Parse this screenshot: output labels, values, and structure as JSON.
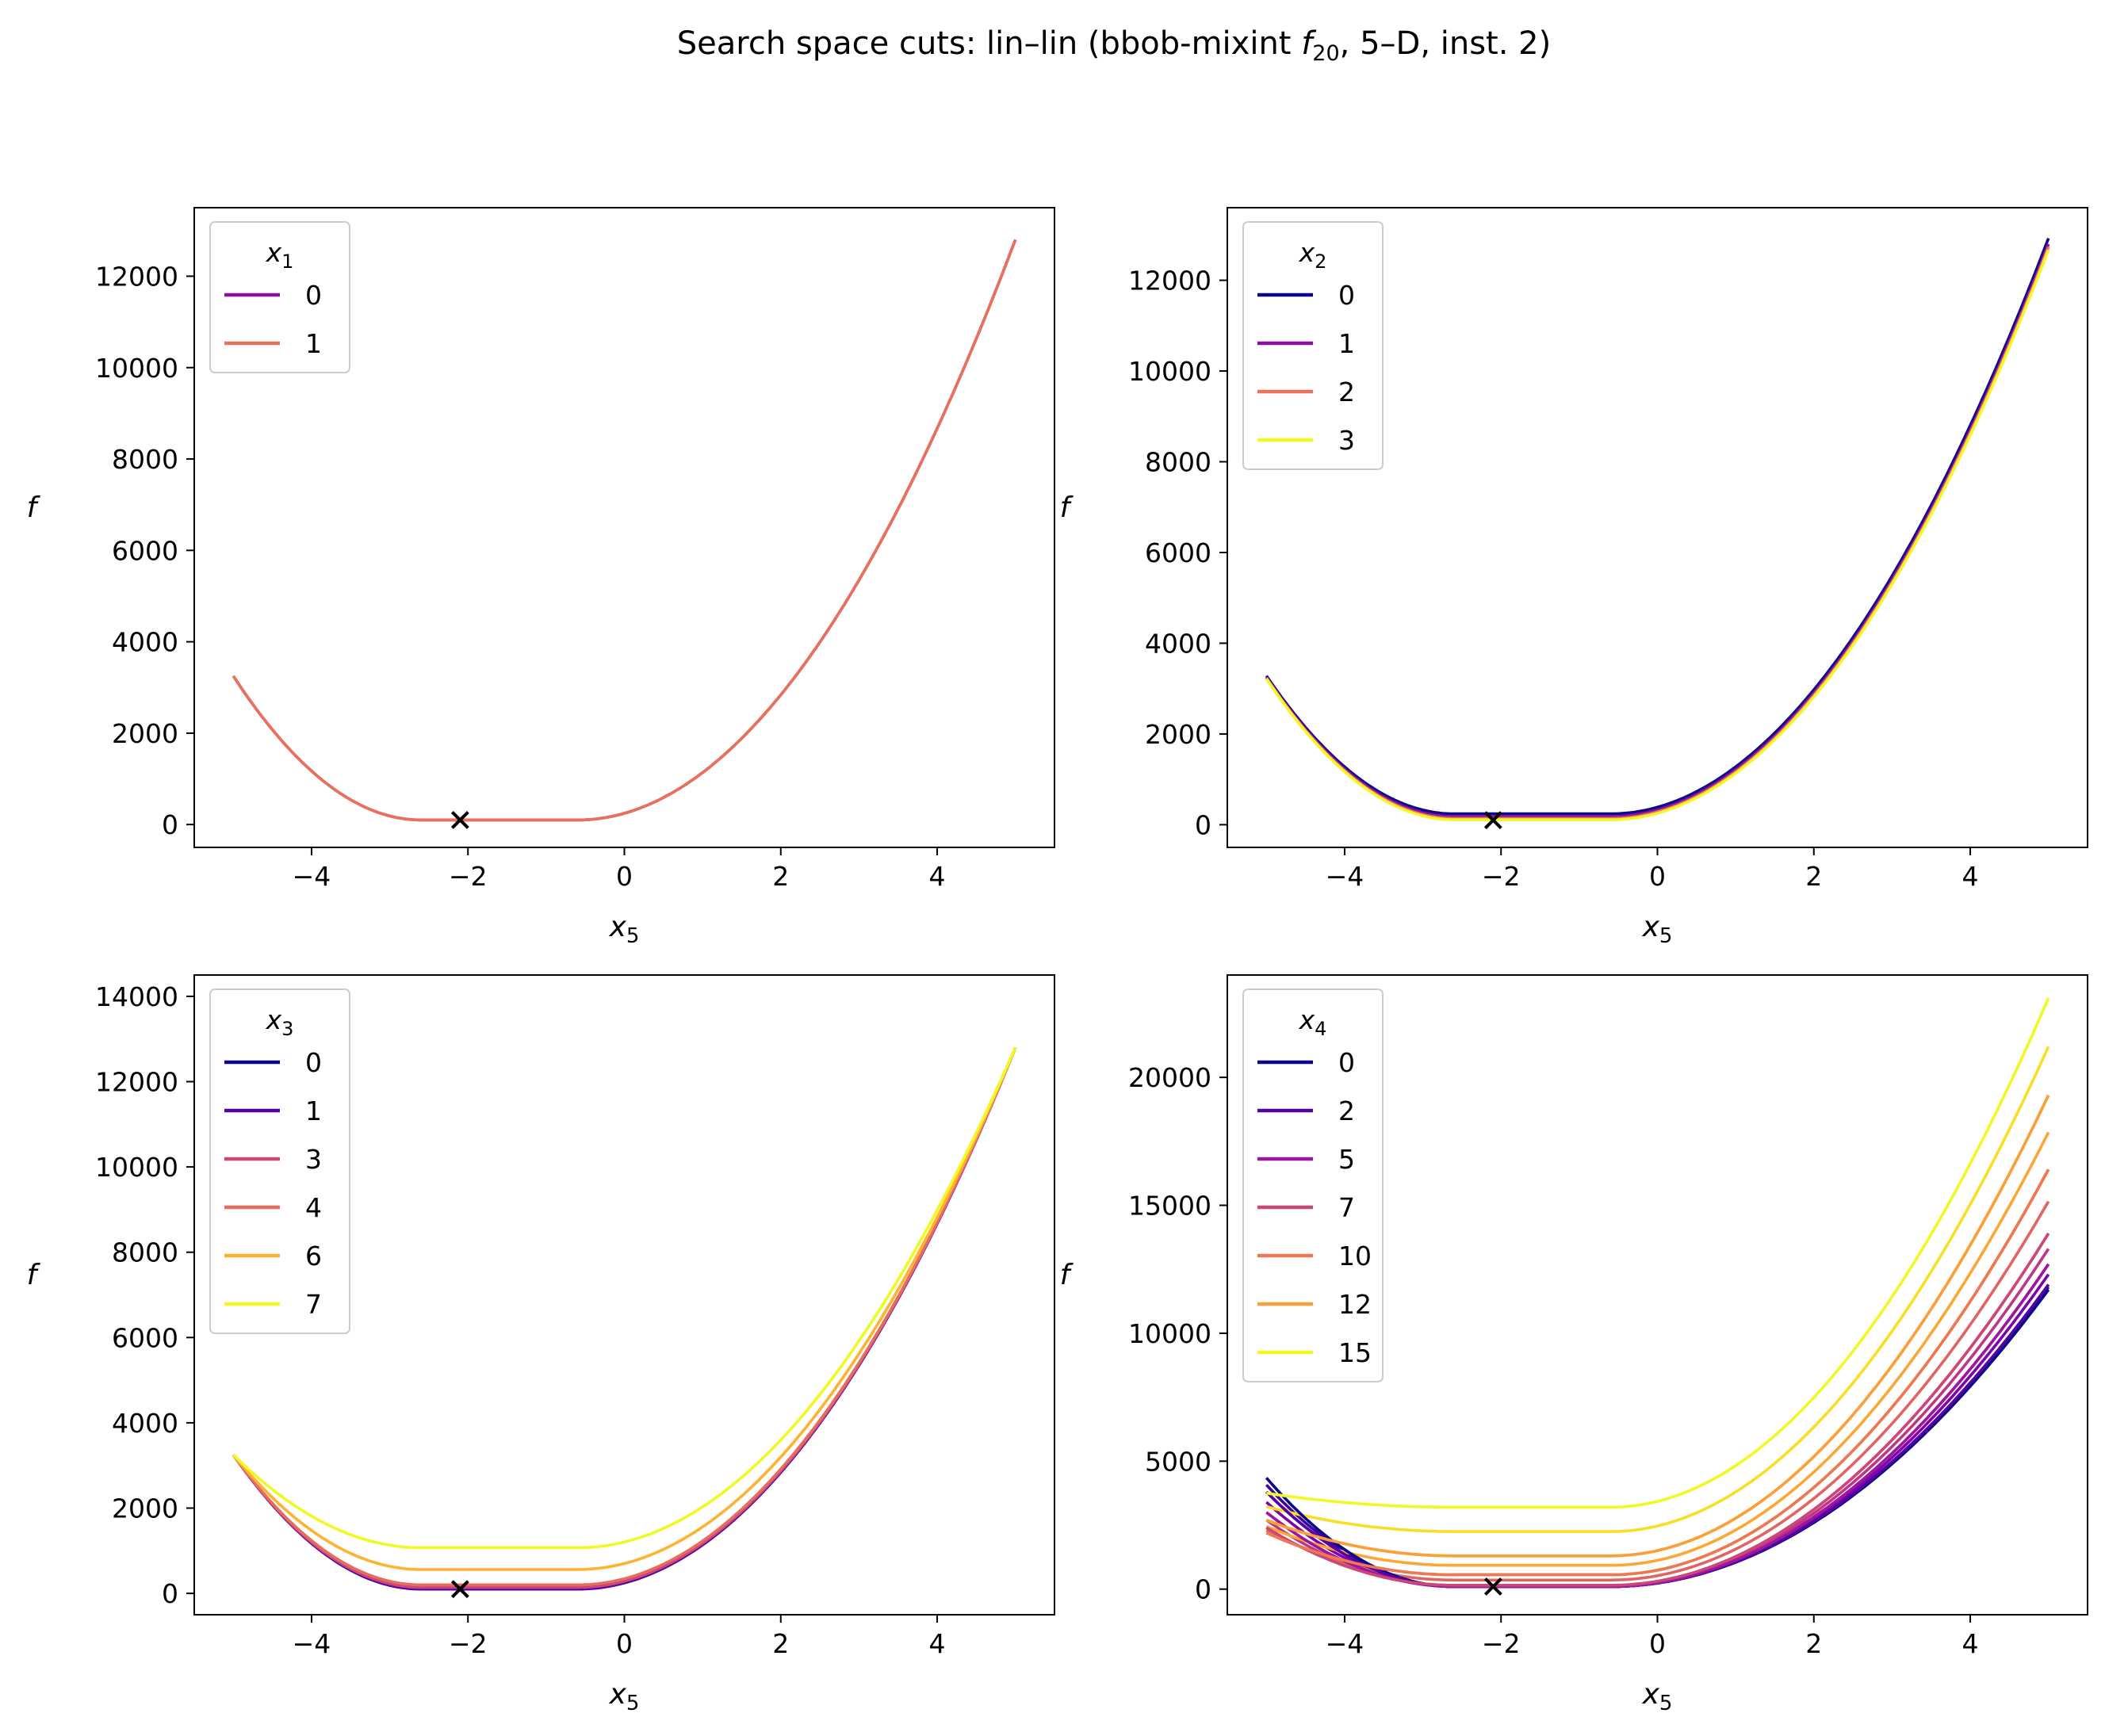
{
  "figure": {
    "title_main": "Search space cuts: lin–lin (bbob-mixint ",
    "title_f": "f",
    "title_sub": "20",
    "title_end": ", 5–D, inst. 2)"
  },
  "chart_data": [
    {
      "type": "line",
      "xlabel_var": "x",
      "xlabel_sub": "5",
      "ylabel": "f",
      "xlim": [
        -5.5,
        5.5
      ],
      "ylim": [
        -500,
        13500
      ],
      "xticks": [
        -4,
        -2,
        0,
        2,
        4
      ],
      "xtick_labels": [
        "−4",
        "−2",
        "0",
        "2",
        "4"
      ],
      "yticks": [
        0,
        2000,
        4000,
        6000,
        8000,
        10000,
        12000
      ],
      "ytick_labels": [
        "0",
        "2000",
        "4000",
        "6000",
        "8000",
        "10000",
        "12000"
      ],
      "legend": {
        "title_var": "x",
        "title_sub": "1",
        "position": "upper-left"
      },
      "series": [
        {
          "name": "0",
          "color": "#8f0da4",
          "min_f": 100,
          "scale": 1.0
        },
        {
          "name": "1",
          "color": "#e97159",
          "min_f": 100,
          "scale": 1.0
        }
      ],
      "optimum_marker": {
        "x": -2.1,
        "y": 100
      }
    },
    {
      "type": "line",
      "xlabel_var": "x",
      "xlabel_sub": "5",
      "ylabel": "f",
      "xlim": [
        -5.5,
        5.5
      ],
      "ylim": [
        -500,
        13600
      ],
      "xticks": [
        -4,
        -2,
        0,
        2,
        4
      ],
      "xtick_labels": [
        "−4",
        "−2",
        "0",
        "2",
        "4"
      ],
      "yticks": [
        0,
        2000,
        4000,
        6000,
        8000,
        10000,
        12000
      ],
      "ytick_labels": [
        "0",
        "2000",
        "4000",
        "6000",
        "8000",
        "10000",
        "12000"
      ],
      "legend": {
        "title_var": "x",
        "title_sub": "2",
        "position": "upper-left"
      },
      "series": [
        {
          "name": "0",
          "color": "#0d0887",
          "min_f": 240,
          "scale": 1.01
        },
        {
          "name": "1",
          "color": "#8f0da4",
          "min_f": 180,
          "scale": 1.0
        },
        {
          "name": "2",
          "color": "#e97159",
          "min_f": 140,
          "scale": 0.995
        },
        {
          "name": "3",
          "color": "#f0f921",
          "min_f": 110,
          "scale": 0.99
        }
      ],
      "optimum_marker": {
        "x": -2.1,
        "y": 100
      }
    },
    {
      "type": "line",
      "xlabel_var": "x",
      "xlabel_sub": "5",
      "ylabel": "f",
      "xlim": [
        -5.5,
        5.5
      ],
      "ylim": [
        -500,
        14500
      ],
      "xticks": [
        -4,
        -2,
        0,
        2,
        4
      ],
      "xtick_labels": [
        "−4",
        "−2",
        "0",
        "2",
        "4"
      ],
      "yticks": [
        0,
        2000,
        4000,
        6000,
        8000,
        10000,
        12000,
        14000
      ],
      "ytick_labels": [
        "0",
        "2000",
        "4000",
        "6000",
        "8000",
        "10000",
        "12000",
        "14000"
      ],
      "legend": {
        "title_var": "x",
        "title_sub": "3",
        "position": "upper-left"
      },
      "series": [
        {
          "name": "0",
          "color": "#0d0887",
          "min_f": 110,
          "scale": 1.0
        },
        {
          "name": "1",
          "color": "#5302a3",
          "min_f": 100,
          "scale": 1.0
        },
        {
          "name": "3",
          "color": "#cc4778",
          "min_f": 140,
          "scale": 1.0
        },
        {
          "name": "4",
          "color": "#e66c5c",
          "min_f": 200,
          "scale": 1.0
        },
        {
          "name": "6",
          "color": "#fdb32f",
          "min_f": 560,
          "scale": 1.0
        },
        {
          "name": "7",
          "color": "#f0f921",
          "min_f": 1070,
          "scale": 1.0
        }
      ],
      "optimum_marker": {
        "x": -2.1,
        "y": 100
      }
    },
    {
      "type": "line",
      "xlabel_var": "x",
      "xlabel_sub": "5",
      "ylabel": "f",
      "xlim": [
        -5.5,
        5.5
      ],
      "ylim": [
        -1000,
        24000
      ],
      "xticks": [
        -4,
        -2,
        0,
        2,
        4
      ],
      "xtick_labels": [
        "−4",
        "−2",
        "0",
        "2",
        "4"
      ],
      "yticks": [
        0,
        5000,
        10000,
        15000,
        20000
      ],
      "ytick_labels": [
        "0",
        "5000",
        "10000",
        "15000",
        "20000"
      ],
      "legend": {
        "title_var": "x",
        "title_sub": "4",
        "position": "upper-left"
      },
      "series": [
        {
          "name": "0",
          "color": "#0d0887",
          "min_f": 100,
          "left_f": 4350,
          "right_f": 11700
        },
        {
          "name": "2",
          "color": "#5302a3",
          "min_f": 100,
          "left_f": 3800,
          "right_f": 11900
        },
        {
          "name": "5",
          "color": "#9c179e",
          "min_f": 100,
          "left_f": 3000,
          "right_f": 12700
        },
        {
          "name": "7",
          "color": "#cc4778",
          "min_f": 150,
          "left_f": 2400,
          "right_f": 13900
        },
        {
          "name": "10",
          "color": "#ed7953",
          "min_f": 560,
          "left_f": 2200,
          "right_f": 16400
        },
        {
          "name": "12",
          "color": "#fb9f3a",
          "min_f": 1300,
          "left_f": 2700,
          "right_f": 19300
        },
        {
          "name": "15",
          "color": "#f0f921",
          "min_f": 3200,
          "left_f": 3750,
          "right_f": 23100
        }
      ],
      "unlabeled_series_colors": [
        "#3e049c",
        "#6a00a8",
        "#7e03a8",
        "#b12a90",
        "#bd3786",
        "#d8576b",
        "#e16462",
        "#f48849",
        "#fca636",
        "#fdc328",
        "#f8df25"
      ],
      "optimum_marker": {
        "x": -2.1,
        "y": 100
      }
    }
  ]
}
